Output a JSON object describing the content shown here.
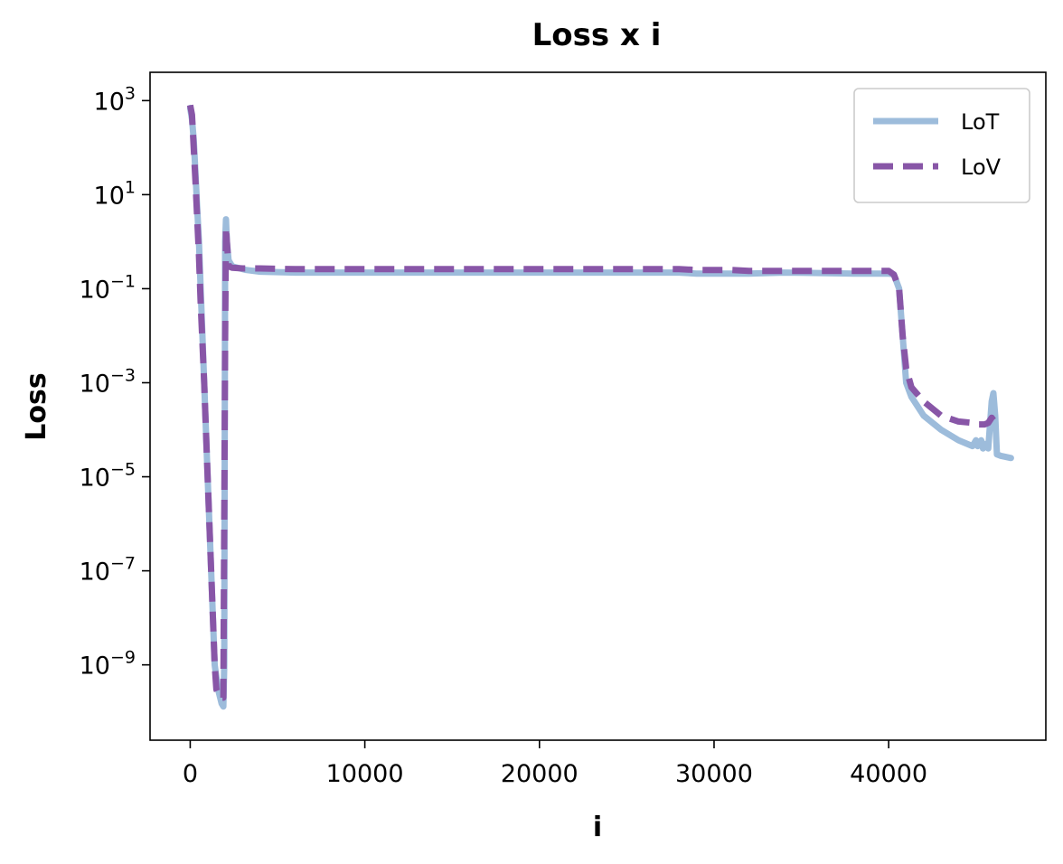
{
  "chart_data": {
    "type": "line",
    "title": "Loss x i",
    "xlabel": "i",
    "ylabel": "Loss",
    "xlim": [
      -2300,
      49000
    ],
    "ylim": [
      2.5e-11,
      4000
    ],
    "yscale": "log",
    "x_ticks": [
      0,
      10000,
      20000,
      30000,
      40000
    ],
    "x_tick_labels": [
      "0",
      "10000",
      "20000",
      "30000",
      "40000"
    ],
    "y_ticks": [
      1e-09,
      1e-07,
      1e-05,
      0.001,
      0.1,
      10,
      1000
    ],
    "y_tick_labels": [
      {
        "base": "10",
        "exp": "−9"
      },
      {
        "base": "10",
        "exp": "−7"
      },
      {
        "base": "10",
        "exp": "−5"
      },
      {
        "base": "10",
        "exp": "−3"
      },
      {
        "base": "10",
        "exp": "−1"
      },
      {
        "base": "10",
        "exp": "1"
      },
      {
        "base": "10",
        "exp": "3"
      }
    ],
    "grid": false,
    "legend_position": "top-right",
    "series": [
      {
        "name": "LoT",
        "color": "#9dbcdb",
        "style": "solid",
        "x": [
          0,
          100,
          200,
          300,
          400,
          500,
          600,
          800,
          1000,
          1200,
          1400,
          1600,
          1800,
          1900,
          1950,
          2000,
          2050,
          2100,
          2200,
          2400,
          2700,
          3200,
          4000,
          6000,
          10000,
          20000,
          28000,
          29000,
          31000,
          32000,
          34000,
          38000,
          40000,
          40300,
          40600,
          40800,
          41000,
          41300,
          42000,
          43000,
          44000,
          44800,
          45000,
          45100,
          45300,
          45400,
          45500,
          45700,
          45900,
          46000,
          46100,
          46200,
          46400,
          47000
        ],
        "y": [
          700,
          400,
          150,
          30,
          5,
          1,
          0.1,
          0.001,
          1e-05,
          1e-07,
          1e-09,
          3e-10,
          1.5e-10,
          1.3e-10,
          1e-09,
          1,
          3,
          1,
          0.4,
          0.3,
          0.28,
          0.25,
          0.23,
          0.22,
          0.22,
          0.22,
          0.22,
          0.21,
          0.21,
          0.21,
          0.22,
          0.21,
          0.21,
          0.2,
          0.1,
          0.01,
          0.001,
          0.0005,
          0.0002,
          0.0001,
          6e-05,
          4.5e-05,
          6e-05,
          4.5e-05,
          6e-05,
          4e-05,
          5e-05,
          4e-05,
          0.0004,
          0.0006,
          0.0002,
          3e-05,
          2.8e-05,
          2.5e-05
        ]
      },
      {
        "name": "LoV",
        "color": "#8856a7",
        "style": "dashed",
        "x": [
          0,
          100,
          200,
          300,
          400,
          500,
          600,
          800,
          1000,
          1200,
          1400,
          1500,
          1700,
          1900,
          2000,
          2050,
          2100,
          2200,
          2400,
          3000,
          4000,
          6000,
          10000,
          20000,
          28000,
          29000,
          31000,
          32000,
          34000,
          38000,
          40000,
          40300,
          40600,
          40800,
          41000,
          41300,
          42000,
          43000,
          44000,
          44800,
          45000,
          45500,
          45700,
          45900,
          46000
        ],
        "y": [
          800,
          500,
          100,
          20,
          3,
          0.5,
          0.05,
          0.001,
          1e-05,
          1e-07,
          1e-09,
          3e-10,
          2e-10,
          2e-10,
          0.01,
          2,
          1,
          0.3,
          0.28,
          0.27,
          0.27,
          0.26,
          0.26,
          0.26,
          0.26,
          0.25,
          0.25,
          0.24,
          0.24,
          0.24,
          0.24,
          0.2,
          0.1,
          0.01,
          0.002,
          0.0008,
          0.0004,
          0.0002,
          0.00015,
          0.00014,
          0.00013,
          0.00013,
          0.00014,
          0.00018,
          0.00016
        ]
      }
    ]
  }
}
